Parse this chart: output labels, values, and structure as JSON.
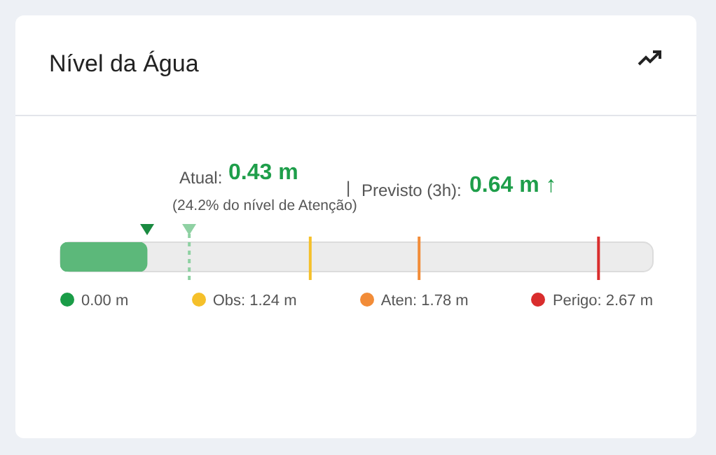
{
  "chart_data": {
    "type": "bar",
    "orientation": "horizontal",
    "title": "Nível da Água",
    "categories": [
      null
    ],
    "xlim": [
      0,
      2.94
    ],
    "tick_labels": false,
    "series": [
      {
        "color": "#5cb87a",
        "values": [
          0.43
        ]
      }
    ],
    "ref_lines": [
      {
        "axis": "x",
        "value": 0.64,
        "color": "#8fd1a3",
        "line_style": "dashed"
      },
      {
        "axis": "x",
        "value": 1.24,
        "label": "Obs: 1.24 m",
        "color": "#f5c02a",
        "line_style": "solid"
      },
      {
        "axis": "x",
        "value": 1.78,
        "label": "Aten: 1.78 m",
        "color": "#f28c38",
        "line_style": "solid"
      },
      {
        "axis": "x",
        "value": 2.67,
        "label": "Perigo: 2.67 m",
        "color": "#d92d2d",
        "line_style": "solid"
      }
    ],
    "annotations": [
      "Atual:",
      "0.43 m",
      "(24.2% do nível de Atenção)",
      "|",
      "Previsto (3h):",
      "0.64 m ↑",
      "0.00 m"
    ]
  }
}
